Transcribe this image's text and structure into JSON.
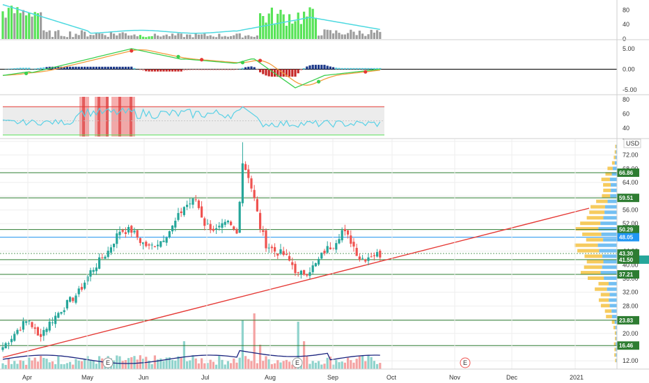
{
  "colors": {
    "up": "#26a69a",
    "down": "#ef5350",
    "level_line": "#2e7d32",
    "level_label": "#2e7d32",
    "trend": "#e53935",
    "current": "#2196f3",
    "vol_up": "#8fd3cc",
    "vol_down": "#f4a3a3",
    "ma": "#1a237e",
    "rsi": "#5ad1e6",
    "grid": "#eeeeee",
    "vp_up": "#f5c242",
    "vp_down": "#5ab4f0",
    "ind1_green": "#57e357",
    "ind1_gray": "#9e9e9e",
    "ind1_line": "#4dd9e0"
  },
  "chart_data": [
    {
      "type": "bar",
      "panel": "indicator-1",
      "y_ticks": [
        "80",
        "40",
        "0"
      ],
      "ylim": [
        0,
        100
      ]
    },
    {
      "type": "line",
      "panel": "macd",
      "y_ticks": [
        "5.00",
        "0.00",
        "-5.00"
      ],
      "ylim": [
        -6,
        7
      ]
    },
    {
      "type": "line",
      "panel": "rsi",
      "y_ticks": [
        "80",
        "60",
        "40"
      ],
      "ylim": [
        26,
        86
      ],
      "bands": [
        70,
        30
      ]
    },
    {
      "type": "candlestick",
      "panel": "price",
      "currency": "USD",
      "y_ticks": [
        "76.00",
        "72.00",
        "68.00",
        "64.00",
        "60.00",
        "56.00",
        "52.00",
        "48.00",
        "44.00",
        "40.00",
        "36.00",
        "32.00",
        "28.00",
        "24.00",
        "20.00",
        "16.00",
        "12.00"
      ],
      "ylim": [
        9.6,
        76.6
      ],
      "x_ticks": [
        "Apr",
        "May",
        "Jun",
        "Jul",
        "Aug",
        "Sep",
        "Oct",
        "Nov",
        "Dec",
        "2021"
      ],
      "levels": [
        "66.86",
        "59.51",
        "50.29",
        "48.05",
        "43.30",
        "41.50",
        "37.21",
        "23.83",
        "16.46"
      ],
      "current_price": "41.50",
      "earnings_marker": "E"
    }
  ]
}
